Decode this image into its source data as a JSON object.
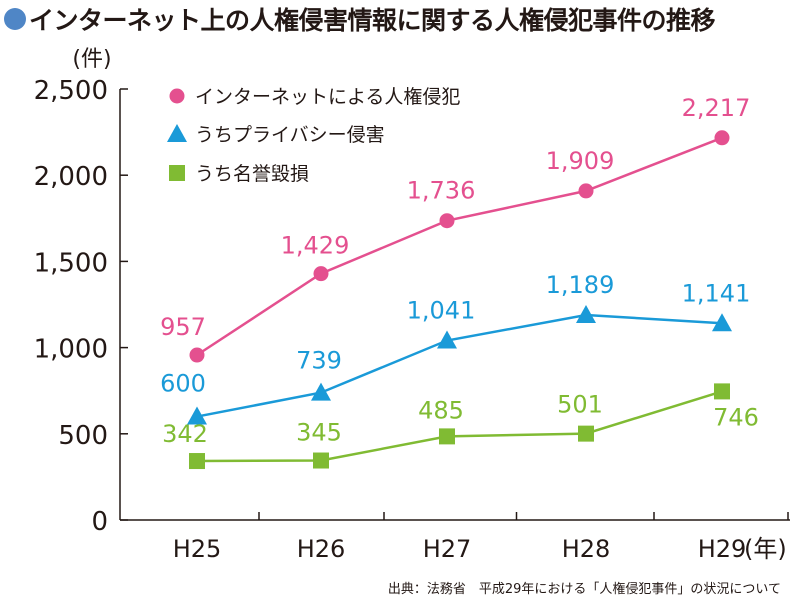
{
  "title": "インターネット上の人権侵害情報に関する人権侵犯事件の推移",
  "source": "出典：法務省　平成29年における「人権侵犯事件」の状況について",
  "colors": {
    "title_dot": "#4f86c6",
    "axis": "#231815"
  },
  "chart_data": {
    "type": "line",
    "ylabel": "(件)",
    "xlabel": "(年)",
    "categories": [
      "H25",
      "H26",
      "H27",
      "H28",
      "H29"
    ],
    "ylim": [
      0,
      2500
    ],
    "yticks": [
      0,
      500,
      1000,
      1500,
      2000,
      2500
    ],
    "ytick_labels": [
      "0",
      "500",
      "1,000",
      "1,500",
      "2,000",
      "2,500"
    ],
    "grid": false,
    "legend_position": "top-left",
    "series": [
      {
        "name": "インターネットによる人権侵犯",
        "marker": "circle",
        "color": "#e4508f",
        "values": [
          957,
          1429,
          1736,
          1909,
          2217
        ],
        "labels": [
          "957",
          "1,429",
          "1,736",
          "1,909",
          "2,217"
        ]
      },
      {
        "name": "うちプライバシー侵害",
        "marker": "triangle",
        "color": "#1a9ad8",
        "values": [
          600,
          739,
          1041,
          1189,
          1141
        ],
        "labels": [
          "600",
          "739",
          "1,041",
          "1,189",
          "1,141"
        ]
      },
      {
        "name": "うち名誉毀損",
        "marker": "square",
        "color": "#80bb33",
        "values": [
          342,
          345,
          485,
          501,
          746
        ],
        "labels": [
          "342",
          "345",
          "485",
          "501",
          "746"
        ]
      }
    ]
  }
}
